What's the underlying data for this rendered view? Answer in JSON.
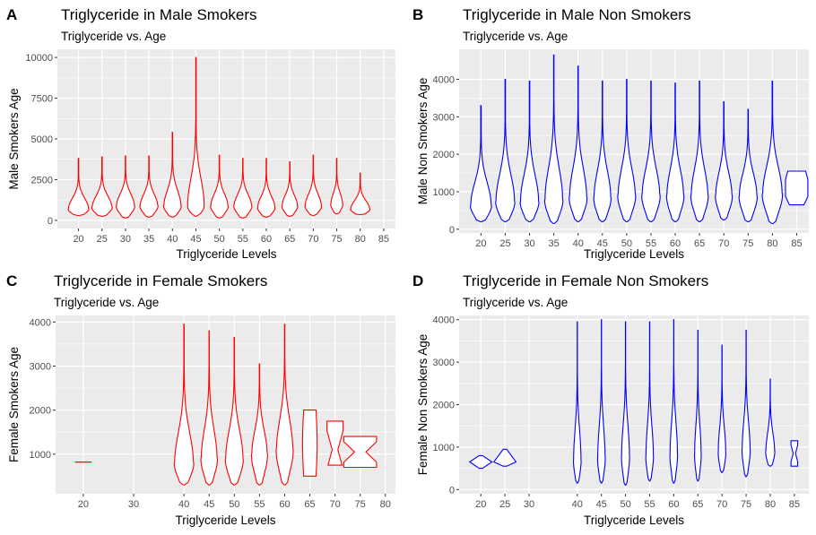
{
  "colors": {
    "male_smokers": "#ff0000",
    "male_non_smokers": "#0000ff",
    "female_smokers": "#ff0000",
    "female_non_smokers": "#0000ff",
    "panel_bg": "#ebebeb",
    "grid": "#ffffff"
  },
  "chart_data": [
    {
      "id": "A",
      "tag": "A",
      "type": "violin",
      "title": "Triglyceride in Male Smokers",
      "subtitle": "Triglyceride vs. Age",
      "xlabel": "Triglyceride Levels",
      "ylabel": "Male Smokers Age",
      "color": "#ff0000",
      "xticks": [
        20,
        25,
        30,
        35,
        40,
        45,
        50,
        55,
        60,
        65,
        70,
        75,
        80,
        85
      ],
      "xlim": [
        15.5,
        87.5
      ],
      "yticks": [
        0,
        2500,
        5000,
        7500,
        10000
      ],
      "ylim": [
        -500,
        10500
      ],
      "grid": true,
      "violins": [
        {
          "x": 20,
          "min": 300,
          "max": 3800,
          "mode": 700,
          "width": 4.5
        },
        {
          "x": 25,
          "min": 250,
          "max": 3900,
          "mode": 800,
          "width": 4.4
        },
        {
          "x": 30,
          "min": 150,
          "max": 3950,
          "mode": 900,
          "width": 4.0
        },
        {
          "x": 35,
          "min": 200,
          "max": 3950,
          "mode": 900,
          "width": 3.9
        },
        {
          "x": 40,
          "min": 200,
          "max": 5400,
          "mode": 900,
          "width": 3.8
        },
        {
          "x": 45,
          "min": 250,
          "max": 10000,
          "mode": 900,
          "width": 3.7
        },
        {
          "x": 50,
          "min": 150,
          "max": 4000,
          "mode": 900,
          "width": 3.8
        },
        {
          "x": 55,
          "min": 150,
          "max": 3800,
          "mode": 900,
          "width": 3.9
        },
        {
          "x": 60,
          "min": 200,
          "max": 3800,
          "mode": 800,
          "width": 3.8
        },
        {
          "x": 65,
          "min": 250,
          "max": 3600,
          "mode": 900,
          "width": 3.4
        },
        {
          "x": 70,
          "min": 300,
          "max": 4000,
          "mode": 900,
          "width": 3.6
        },
        {
          "x": 75,
          "min": 400,
          "max": 3800,
          "mode": 1000,
          "width": 2.6
        },
        {
          "x": 80,
          "min": 350,
          "max": 2900,
          "mode": 700,
          "width": 4.2
        }
      ]
    },
    {
      "id": "B",
      "tag": "B",
      "type": "violin",
      "title": "Triglyceride in Male Non Smokers",
      "subtitle": "Triglyceride vs. Age",
      "xlabel": "Triglyceride Levels",
      "ylabel": "Male Non Smokers Age",
      "color": "#0000ff",
      "xticks": [
        20,
        25,
        30,
        35,
        40,
        45,
        50,
        55,
        60,
        65,
        70,
        75,
        80,
        85
      ],
      "xlim": [
        15.5,
        87.5
      ],
      "yticks": [
        0,
        1000,
        2000,
        3000,
        4000
      ],
      "ylim": [
        -100,
        4800
      ],
      "grid": true,
      "violins": [
        {
          "x": 20,
          "min": 200,
          "max": 3300,
          "mode": 650,
          "width": 4.4
        },
        {
          "x": 25,
          "min": 200,
          "max": 4000,
          "mode": 750,
          "width": 4.0
        },
        {
          "x": 30,
          "min": 200,
          "max": 3950,
          "mode": 750,
          "width": 3.9
        },
        {
          "x": 35,
          "min": 150,
          "max": 4650,
          "mode": 800,
          "width": 3.8
        },
        {
          "x": 40,
          "min": 200,
          "max": 4350,
          "mode": 850,
          "width": 3.7
        },
        {
          "x": 45,
          "min": 200,
          "max": 3950,
          "mode": 850,
          "width": 3.6
        },
        {
          "x": 50,
          "min": 200,
          "max": 4000,
          "mode": 900,
          "width": 3.7
        },
        {
          "x": 55,
          "min": 200,
          "max": 3950,
          "mode": 900,
          "width": 3.8
        },
        {
          "x": 60,
          "min": 200,
          "max": 3900,
          "mode": 900,
          "width": 3.6
        },
        {
          "x": 65,
          "min": 200,
          "max": 3950,
          "mode": 900,
          "width": 3.6
        },
        {
          "x": 70,
          "min": 250,
          "max": 3400,
          "mode": 900,
          "width": 3.5
        },
        {
          "x": 75,
          "min": 200,
          "max": 3200,
          "mode": 900,
          "width": 3.8
        },
        {
          "x": 80,
          "min": 150,
          "max": 3950,
          "mode": 950,
          "width": 4.2
        },
        {
          "x": 85,
          "min": 650,
          "max": 1550,
          "mode": 1100,
          "width": 4.6,
          "shape": "hex"
        }
      ]
    },
    {
      "id": "C",
      "tag": "C",
      "type": "violin",
      "title": "Triglyceride in Female Smokers",
      "subtitle": "Triglyceride vs. Age",
      "xlabel": "Triglyceride Levels",
      "ylabel": "Female Smokers Age",
      "color": "#ff0000",
      "xticks": [
        20,
        30,
        40,
        45,
        50,
        55,
        60,
        65,
        70,
        75,
        80
      ],
      "xlim": [
        14.5,
        82
      ],
      "yticks": [
        1000,
        2000,
        3000,
        4000
      ],
      "ylim": [
        100,
        4150
      ],
      "grid": true,
      "violins": [
        {
          "x": 20,
          "min": 810,
          "max": 830,
          "mode": 820,
          "width": 3.3,
          "shape": "line"
        },
        {
          "x": 40,
          "min": 300,
          "max": 3950,
          "mode": 800,
          "width": 3.9
        },
        {
          "x": 45,
          "min": 300,
          "max": 3800,
          "mode": 900,
          "width": 3.3
        },
        {
          "x": 50,
          "min": 300,
          "max": 3650,
          "mode": 900,
          "width": 3.6
        },
        {
          "x": 55,
          "min": 300,
          "max": 3050,
          "mode": 1000,
          "width": 3.2
        },
        {
          "x": 60,
          "min": 300,
          "max": 3950,
          "mode": 1100,
          "width": 3.4
        },
        {
          "x": 65,
          "min": 500,
          "max": 2000,
          "mode": 1000,
          "width": 2.9,
          "shape": "barrel"
        },
        {
          "x": 70,
          "min": 750,
          "max": 1750,
          "mode": 1100,
          "width": 3.2,
          "shape": "pinch"
        },
        {
          "x": 75,
          "min": 700,
          "max": 1400,
          "mode": 1050,
          "width": 6.5,
          "shape": "hour"
        }
      ]
    },
    {
      "id": "D",
      "tag": "D",
      "type": "violin",
      "title": "Triglyceride in Female Non Smokers",
      "subtitle": "Triglyceride vs. Age",
      "xlabel": "Triglyceride Levels",
      "ylabel": "Female Non Smokers Age",
      "color": "#0000ff",
      "xticks": [
        20,
        25,
        30,
        40,
        45,
        50,
        55,
        60,
        65,
        70,
        75,
        80,
        85
      ],
      "xlim": [
        15.5,
        88
      ],
      "yticks": [
        0,
        1000,
        2000,
        3000,
        4000
      ],
      "ylim": [
        -100,
        4100
      ],
      "grid": true,
      "violins": [
        {
          "x": 20,
          "min": 500,
          "max": 800,
          "mode": 650,
          "width": 4.6,
          "shape": "lozenge"
        },
        {
          "x": 25,
          "min": 550,
          "max": 950,
          "mode": 650,
          "width": 4.6,
          "shape": "lozenge"
        },
        {
          "x": 40,
          "min": 150,
          "max": 3950,
          "mode": 700,
          "width": 1.6
        },
        {
          "x": 45,
          "min": 150,
          "max": 4000,
          "mode": 750,
          "width": 1.6
        },
        {
          "x": 50,
          "min": 100,
          "max": 3950,
          "mode": 800,
          "width": 1.7
        },
        {
          "x": 55,
          "min": 200,
          "max": 3950,
          "mode": 800,
          "width": 1.6
        },
        {
          "x": 60,
          "min": 150,
          "max": 4000,
          "mode": 850,
          "width": 1.6
        },
        {
          "x": 65,
          "min": 200,
          "max": 3750,
          "mode": 850,
          "width": 1.4
        },
        {
          "x": 70,
          "min": 400,
          "max": 3400,
          "mode": 900,
          "width": 1.6
        },
        {
          "x": 75,
          "min": 300,
          "max": 3750,
          "mode": 950,
          "width": 1.7
        },
        {
          "x": 80,
          "min": 550,
          "max": 2600,
          "mode": 900,
          "width": 1.9
        },
        {
          "x": 85,
          "min": 550,
          "max": 1150,
          "mode": 850,
          "width": 1.4,
          "shape": "hour"
        }
      ]
    }
  ]
}
